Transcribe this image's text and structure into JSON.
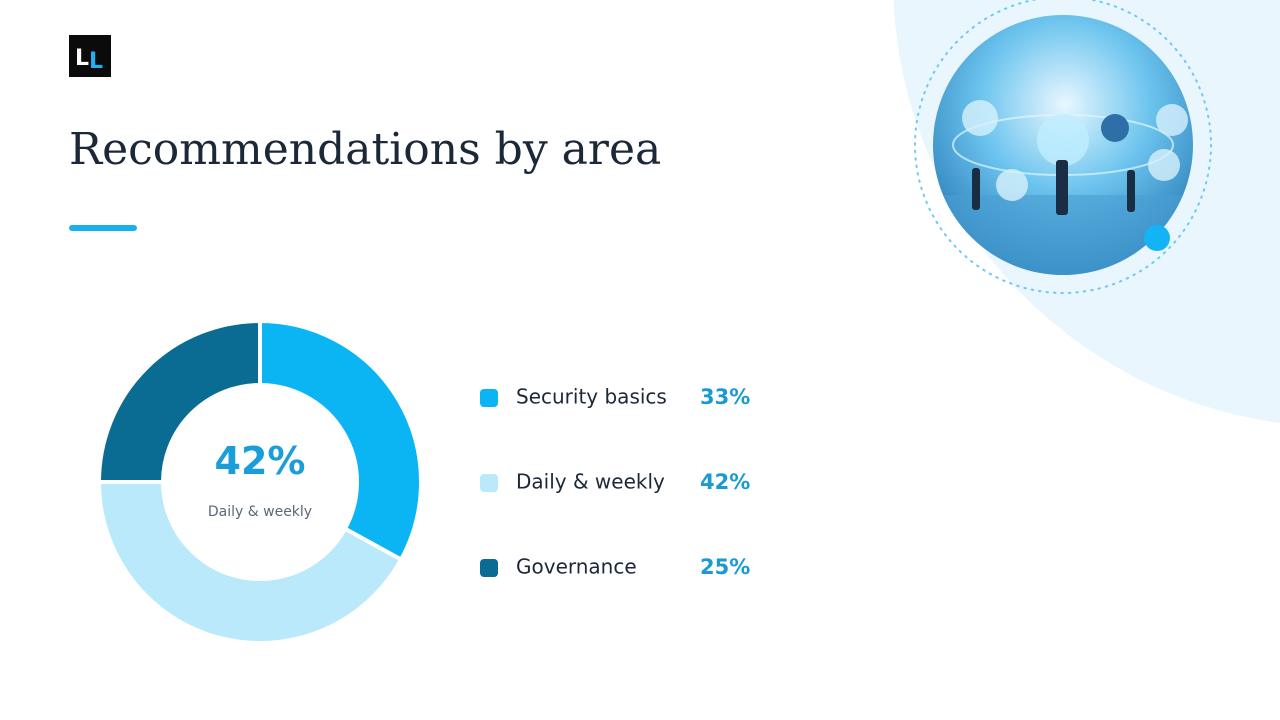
{
  "logo": [
    "L",
    "L"
  ],
  "chart_data": {
    "type": "pie",
    "title": "Recommendations by area",
    "categories": [
      "Security basics",
      "Daily & weekly",
      "Governance"
    ],
    "values": [
      33,
      42,
      25
    ],
    "value_labels": [
      "33%",
      "42%",
      "25%"
    ],
    "colors": [
      "#0bb5f4",
      "#b9e9fb",
      "#0a6b93"
    ],
    "center_text": "42%",
    "center_subtext": "Daily & weekly",
    "legend": "right"
  }
}
